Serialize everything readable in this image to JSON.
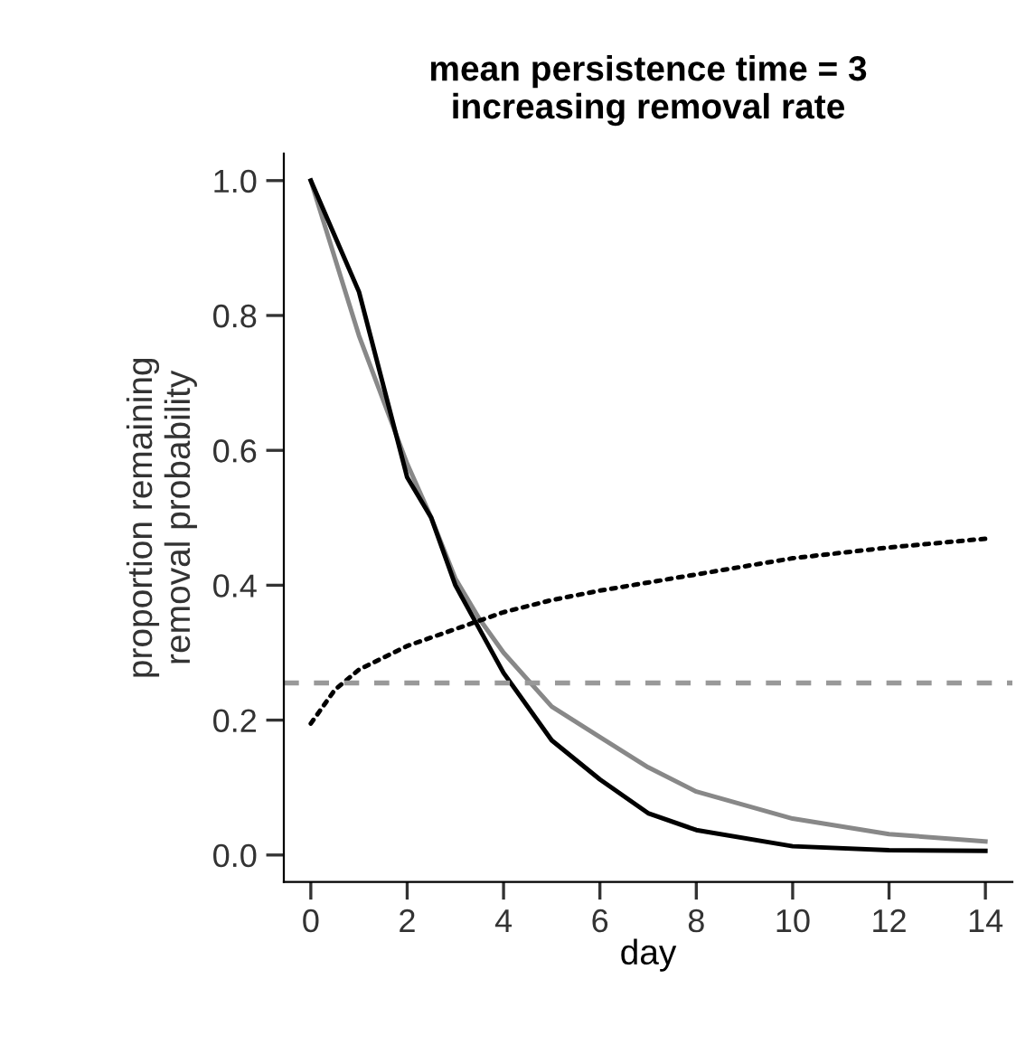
{
  "chart_data": {
    "type": "line",
    "title": "mean persistence time = 3\nincreasing removal rate",
    "xlabel": "day",
    "ylabel": "proportion remaining\nremoval probability",
    "series": [
      {
        "color": "#888888",
        "x": [
          0,
          1,
          2,
          2.5,
          3,
          3.5,
          4,
          5,
          6,
          7,
          8,
          10,
          12,
          14
        ],
        "values": [
          1.0,
          0.77,
          0.58,
          0.5,
          0.41,
          0.35,
          0.3,
          0.22,
          0.175,
          0.13,
          0.094,
          0.054,
          0.031,
          0.02
        ]
      },
      {
        "color": "#000000",
        "x": [
          0,
          1,
          2,
          2.5,
          3,
          3.5,
          4,
          5,
          6,
          7,
          8,
          10,
          12,
          14
        ],
        "values": [
          1.0,
          0.835,
          0.56,
          0.5,
          0.4,
          0.335,
          0.27,
          0.17,
          0.112,
          0.062,
          0.037,
          0.013,
          0.007,
          0.006
        ]
      },
      {
        "color": "#000000",
        "line_style": "dotted",
        "x": [
          0,
          0.5,
          1,
          2,
          3,
          4,
          5,
          6,
          8,
          10,
          12,
          14
        ],
        "values": [
          0.195,
          0.245,
          0.275,
          0.31,
          0.335,
          0.36,
          0.378,
          0.392,
          0.416,
          0.44,
          0.456,
          0.469
        ]
      }
    ],
    "ref_lines": [
      {
        "axis": "y",
        "value": 0.255,
        "color": "#999999",
        "line_style": "dashed"
      }
    ],
    "xlim": [
      -0.56,
      14.56
    ],
    "ylim": [
      -0.04,
      1.04
    ],
    "xticks": [
      0,
      2,
      4,
      6,
      8,
      10,
      12,
      14
    ],
    "yticks": [
      {
        "value": 0,
        "label": "0.0"
      },
      {
        "value": 0.2,
        "label": "0.2"
      },
      {
        "value": 0.4,
        "label": "0.4"
      },
      {
        "value": 0.6,
        "label": "0.6"
      },
      {
        "value": 0.8,
        "label": "0.8"
      },
      {
        "value": 1.0,
        "label": "1.0"
      }
    ],
    "grid": false,
    "legend": false,
    "marker": "none"
  }
}
